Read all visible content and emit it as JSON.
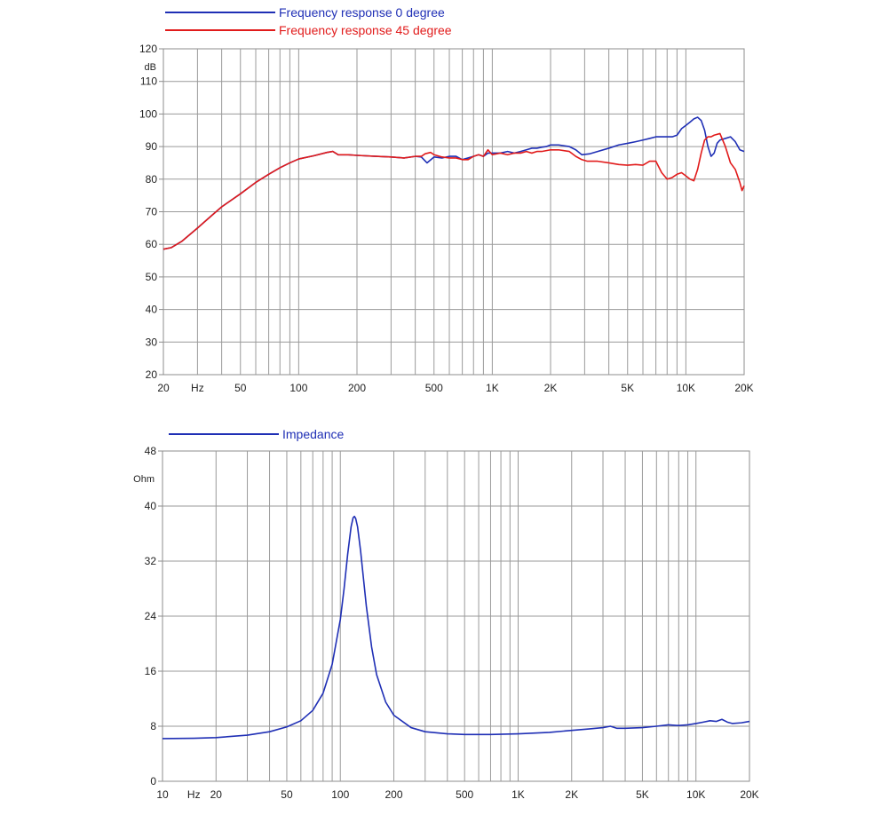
{
  "chart_data": [
    {
      "type": "line",
      "id": "frequency-response",
      "xscale": "log",
      "xlim": [
        20,
        20000
      ],
      "ylim": [
        20,
        120
      ],
      "ylabel": "dB",
      "x_ticks": [
        {
          "v": 20,
          "t": "20"
        },
        {
          "v": 30,
          "t": "Hz"
        },
        {
          "v": 50,
          "t": "50"
        },
        {
          "v": 100,
          "t": "100"
        },
        {
          "v": 200,
          "t": "200"
        },
        {
          "v": 500,
          "t": "500"
        },
        {
          "v": 1000,
          "t": "1K"
        },
        {
          "v": 2000,
          "t": "2K"
        },
        {
          "v": 5000,
          "t": "5K"
        },
        {
          "v": 10000,
          "t": "10K"
        },
        {
          "v": 20000,
          "t": "20K"
        }
      ],
      "y_ticks": [
        120,
        110,
        100,
        90,
        80,
        70,
        60,
        50,
        40,
        30,
        20
      ],
      "series": [
        {
          "name": "Frequency response 0 degree",
          "color": "#1f2fb5",
          "points": [
            [
              20,
              58.5
            ],
            [
              22,
              59
            ],
            [
              25,
              61
            ],
            [
              30,
              65
            ],
            [
              35,
              68.5
            ],
            [
              40,
              71.5
            ],
            [
              50,
              75.5
            ],
            [
              60,
              79
            ],
            [
              70,
              81.5
            ],
            [
              80,
              83.5
            ],
            [
              90,
              85
            ],
            [
              100,
              86.2
            ],
            [
              120,
              87.2
            ],
            [
              140,
              88.2
            ],
            [
              150,
              88.5
            ],
            [
              160,
              87.5
            ],
            [
              180,
              87.5
            ],
            [
              200,
              87.3
            ],
            [
              250,
              87
            ],
            [
              300,
              86.8
            ],
            [
              350,
              86.5
            ],
            [
              400,
              87
            ],
            [
              430,
              86.8
            ],
            [
              460,
              85
            ],
            [
              500,
              86.8
            ],
            [
              550,
              86.5
            ],
            [
              600,
              87
            ],
            [
              650,
              87
            ],
            [
              700,
              86
            ],
            [
              750,
              86.5
            ],
            [
              800,
              87
            ],
            [
              850,
              87.5
            ],
            [
              900,
              87
            ],
            [
              950,
              88
            ],
            [
              1000,
              88
            ],
            [
              1100,
              88
            ],
            [
              1200,
              88.5
            ],
            [
              1300,
              88
            ],
            [
              1400,
              88.5
            ],
            [
              1500,
              89
            ],
            [
              1600,
              89.5
            ],
            [
              1700,
              89.5
            ],
            [
              1800,
              89.8
            ],
            [
              1900,
              90
            ],
            [
              2000,
              90.5
            ],
            [
              2200,
              90.5
            ],
            [
              2500,
              90
            ],
            [
              2700,
              89
            ],
            [
              2900,
              87.5
            ],
            [
              3200,
              87.8
            ],
            [
              3500,
              88.5
            ],
            [
              4000,
              89.5
            ],
            [
              4500,
              90.5
            ],
            [
              5000,
              91
            ],
            [
              5500,
              91.5
            ],
            [
              6000,
              92
            ],
            [
              6500,
              92.5
            ],
            [
              7000,
              93
            ],
            [
              7500,
              93
            ],
            [
              8000,
              93
            ],
            [
              8500,
              93
            ],
            [
              9000,
              93.5
            ],
            [
              9500,
              95.5
            ],
            [
              10000,
              96.5
            ],
            [
              10500,
              97.5
            ],
            [
              11000,
              98.5
            ],
            [
              11500,
              99
            ],
            [
              12000,
              98
            ],
            [
              12500,
              95
            ],
            [
              13000,
              90
            ],
            [
              13500,
              87
            ],
            [
              14000,
              88
            ],
            [
              14500,
              91
            ],
            [
              15000,
              92
            ],
            [
              16000,
              92.5
            ],
            [
              17000,
              93
            ],
            [
              18000,
              91.5
            ],
            [
              19000,
              89
            ],
            [
              20000,
              88.5
            ]
          ]
        },
        {
          "name": "Frequency response 45 degree",
          "color": "#e11b1b",
          "points": [
            [
              20,
              58.5
            ],
            [
              22,
              59
            ],
            [
              25,
              61
            ],
            [
              30,
              65
            ],
            [
              35,
              68.5
            ],
            [
              40,
              71.5
            ],
            [
              50,
              75.5
            ],
            [
              60,
              79
            ],
            [
              70,
              81.5
            ],
            [
              80,
              83.5
            ],
            [
              90,
              85
            ],
            [
              100,
              86.2
            ],
            [
              120,
              87.2
            ],
            [
              140,
              88.2
            ],
            [
              150,
              88.5
            ],
            [
              160,
              87.5
            ],
            [
              180,
              87.5
            ],
            [
              200,
              87.3
            ],
            [
              250,
              87
            ],
            [
              300,
              86.8
            ],
            [
              350,
              86.5
            ],
            [
              400,
              87
            ],
            [
              430,
              87
            ],
            [
              450,
              87.8
            ],
            [
              480,
              88.2
            ],
            [
              500,
              87.5
            ],
            [
              550,
              86.8
            ],
            [
              600,
              86.5
            ],
            [
              650,
              86.5
            ],
            [
              700,
              86
            ],
            [
              750,
              86
            ],
            [
              800,
              87
            ],
            [
              850,
              87.5
            ],
            [
              900,
              87
            ],
            [
              950,
              89
            ],
            [
              1000,
              87.5
            ],
            [
              1100,
              88
            ],
            [
              1200,
              87.5
            ],
            [
              1300,
              88
            ],
            [
              1400,
              88
            ],
            [
              1500,
              88.5
            ],
            [
              1600,
              88
            ],
            [
              1700,
              88.5
            ],
            [
              1800,
              88.5
            ],
            [
              2000,
              89
            ],
            [
              2200,
              89
            ],
            [
              2500,
              88.5
            ],
            [
              2700,
              87
            ],
            [
              2900,
              86
            ],
            [
              3100,
              85.5
            ],
            [
              3500,
              85.5
            ],
            [
              4000,
              85
            ],
            [
              4500,
              84.5
            ],
            [
              5000,
              84.3
            ],
            [
              5500,
              84.5
            ],
            [
              6000,
              84.3
            ],
            [
              6500,
              85.5
            ],
            [
              7000,
              85.5
            ],
            [
              7500,
              82
            ],
            [
              8000,
              80
            ],
            [
              8500,
              80.5
            ],
            [
              9000,
              81.5
            ],
            [
              9500,
              82
            ],
            [
              10000,
              81
            ],
            [
              10500,
              80
            ],
            [
              11000,
              79.5
            ],
            [
              11500,
              83
            ],
            [
              12000,
              88
            ],
            [
              12500,
              92
            ],
            [
              13000,
              93
            ],
            [
              13500,
              93
            ],
            [
              14000,
              93.5
            ],
            [
              15000,
              94
            ],
            [
              16000,
              90
            ],
            [
              17000,
              85
            ],
            [
              18000,
              83
            ],
            [
              19000,
              79
            ],
            [
              19500,
              76.5
            ],
            [
              20000,
              78
            ]
          ]
        }
      ]
    },
    {
      "type": "line",
      "id": "impedance",
      "xscale": "log",
      "xlim": [
        10,
        20000
      ],
      "ylim": [
        0,
        48
      ],
      "ylabel": "Ohm",
      "x_ticks": [
        {
          "v": 10,
          "t": "10"
        },
        {
          "v": 15,
          "t": "Hz"
        },
        {
          "v": 20,
          "t": "20"
        },
        {
          "v": 50,
          "t": "50"
        },
        {
          "v": 100,
          "t": "100"
        },
        {
          "v": 200,
          "t": "200"
        },
        {
          "v": 500,
          "t": "500"
        },
        {
          "v": 1000,
          "t": "1K"
        },
        {
          "v": 2000,
          "t": "2K"
        },
        {
          "v": 5000,
          "t": "5K"
        },
        {
          "v": 10000,
          "t": "10K"
        },
        {
          "v": 20000,
          "t": "20K"
        }
      ],
      "y_ticks": [
        0,
        8,
        16,
        24,
        32,
        40,
        48
      ],
      "series": [
        {
          "name": "Impedance",
          "color": "#1f2fb5",
          "points": [
            [
              10,
              6.2
            ],
            [
              15,
              6.25
            ],
            [
              20,
              6.35
            ],
            [
              30,
              6.7
            ],
            [
              40,
              7.2
            ],
            [
              50,
              7.9
            ],
            [
              60,
              8.8
            ],
            [
              70,
              10.3
            ],
            [
              80,
              12.8
            ],
            [
              90,
              17
            ],
            [
              100,
              23.5
            ],
            [
              105,
              28
            ],
            [
              110,
              33
            ],
            [
              115,
              37
            ],
            [
              118,
              38.3
            ],
            [
              120,
              38.5
            ],
            [
              122,
              38.2
            ],
            [
              125,
              37
            ],
            [
              130,
              33.5
            ],
            [
              140,
              25.5
            ],
            [
              150,
              19.5
            ],
            [
              160,
              15.5
            ],
            [
              180,
              11.5
            ],
            [
              200,
              9.6
            ],
            [
              250,
              7.8
            ],
            [
              300,
              7.2
            ],
            [
              400,
              6.9
            ],
            [
              500,
              6.8
            ],
            [
              700,
              6.8
            ],
            [
              1000,
              6.9
            ],
            [
              1500,
              7.1
            ],
            [
              2000,
              7.4
            ],
            [
              2500,
              7.6
            ],
            [
              3000,
              7.8
            ],
            [
              3300,
              8.0
            ],
            [
              3600,
              7.7
            ],
            [
              4000,
              7.7
            ],
            [
              5000,
              7.8
            ],
            [
              6000,
              8.0
            ],
            [
              7000,
              8.2
            ],
            [
              8000,
              8.1
            ],
            [
              9000,
              8.2
            ],
            [
              10000,
              8.4
            ],
            [
              11000,
              8.6
            ],
            [
              12000,
              8.8
            ],
            [
              13000,
              8.7
            ],
            [
              14000,
              9.0
            ],
            [
              15000,
              8.6
            ],
            [
              16000,
              8.4
            ],
            [
              18000,
              8.5
            ],
            [
              20000,
              8.7
            ]
          ]
        }
      ]
    }
  ]
}
